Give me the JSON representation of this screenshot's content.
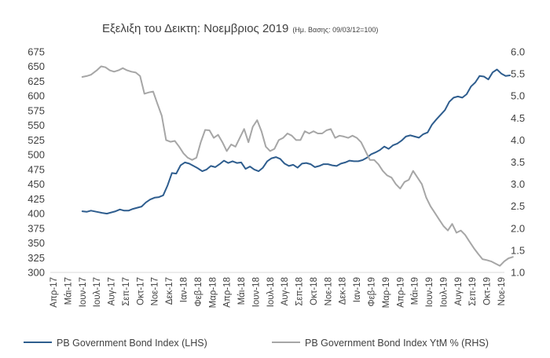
{
  "chart_data": {
    "type": "line",
    "title": "Εξελιξη του Δεικτη: Νοεμβριος 2019",
    "subtitle": "(Ημ. Βασης: 09/03/12=100)",
    "x_categories": [
      "Απρ-17",
      "Μάι-17",
      "Ιουν-17",
      "Ιουλ-17",
      "Αυγ-17",
      "Σεπ-17",
      "Οκτ-17",
      "Νοε-17",
      "Δεκ-17",
      "Ιαν-18",
      "Φεβ-18",
      "Μαρ-18",
      "Απρ-18",
      "Μάι-18",
      "Ιουν-18",
      "Ιουλ-18",
      "Αυγ-18",
      "Σεπ-18",
      "Οκτ-18",
      "Νοε-18",
      "Δεκ-18",
      "Ιαν-19",
      "Φεβ-19",
      "Μαρ-19",
      "Απρ-19",
      "Μάι-19",
      "Ιουν-19",
      "Ιουλ-19",
      "Αυγ-19",
      "Σεπ-19",
      "Οκτ-19",
      "Νοε-19"
    ],
    "y_left": {
      "min": 300,
      "max": 675,
      "ticks": [
        "300",
        "325",
        "350",
        "375",
        "400",
        "425",
        "450",
        "475",
        "500",
        "525",
        "550",
        "575",
        "600",
        "625",
        "650",
        "675"
      ]
    },
    "y_right": {
      "min": 1.0,
      "max": 6.0,
      "ticks": [
        "1.0",
        "1.5",
        "2.0",
        "2.5",
        "3.0",
        "3.5",
        "4.0",
        "4.5",
        "5.0",
        "5.5",
        "6.0"
      ]
    },
    "series": [
      {
        "name": "PB Government Bond Index (LHS)",
        "axis": "left",
        "color": "#2e5d8e",
        "points": [
          [
            2.0,
            404
          ],
          [
            2.3,
            403
          ],
          [
            2.6,
            405
          ],
          [
            3.0,
            403
          ],
          [
            3.4,
            401
          ],
          [
            3.7,
            400
          ],
          [
            4.0,
            402
          ],
          [
            4.3,
            404
          ],
          [
            4.6,
            407
          ],
          [
            4.9,
            405
          ],
          [
            5.2,
            405
          ],
          [
            5.5,
            408
          ],
          [
            5.8,
            410
          ],
          [
            6.1,
            412
          ],
          [
            6.4,
            419
          ],
          [
            6.7,
            424
          ],
          [
            7.0,
            427
          ],
          [
            7.3,
            428
          ],
          [
            7.6,
            431
          ],
          [
            7.9,
            448
          ],
          [
            8.2,
            469
          ],
          [
            8.5,
            468
          ],
          [
            8.8,
            482
          ],
          [
            9.1,
            487
          ],
          [
            9.4,
            485
          ],
          [
            9.7,
            481
          ],
          [
            10.0,
            477
          ],
          [
            10.3,
            472
          ],
          [
            10.6,
            475
          ],
          [
            10.9,
            481
          ],
          [
            11.2,
            479
          ],
          [
            11.5,
            484
          ],
          [
            11.8,
            490
          ],
          [
            12.1,
            486
          ],
          [
            12.4,
            489
          ],
          [
            12.7,
            486
          ],
          [
            13.0,
            487
          ],
          [
            13.3,
            476
          ],
          [
            13.6,
            480
          ],
          [
            13.9,
            475
          ],
          [
            14.2,
            472
          ],
          [
            14.5,
            478
          ],
          [
            14.8,
            489
          ],
          [
            15.1,
            494
          ],
          [
            15.4,
            496
          ],
          [
            15.7,
            493
          ],
          [
            16.0,
            485
          ],
          [
            16.3,
            481
          ],
          [
            16.6,
            483
          ],
          [
            16.9,
            478
          ],
          [
            17.2,
            485
          ],
          [
            17.5,
            486
          ],
          [
            17.8,
            484
          ],
          [
            18.1,
            479
          ],
          [
            18.4,
            481
          ],
          [
            18.7,
            484
          ],
          [
            19.0,
            484
          ],
          [
            19.3,
            482
          ],
          [
            19.6,
            481
          ],
          [
            19.9,
            485
          ],
          [
            20.2,
            487
          ],
          [
            20.5,
            490
          ],
          [
            20.8,
            489
          ],
          [
            21.1,
            489
          ],
          [
            21.4,
            491
          ],
          [
            21.7,
            495
          ],
          [
            22.0,
            501
          ],
          [
            22.3,
            504
          ],
          [
            22.6,
            508
          ],
          [
            22.9,
            514
          ],
          [
            23.2,
            510
          ],
          [
            23.5,
            516
          ],
          [
            23.8,
            519
          ],
          [
            24.1,
            524
          ],
          [
            24.4,
            531
          ],
          [
            24.7,
            533
          ],
          [
            25.0,
            531
          ],
          [
            25.3,
            529
          ],
          [
            25.6,
            535
          ],
          [
            25.9,
            538
          ],
          [
            26.2,
            551
          ],
          [
            26.5,
            560
          ],
          [
            26.8,
            568
          ],
          [
            27.1,
            576
          ],
          [
            27.4,
            590
          ],
          [
            27.7,
            597
          ],
          [
            28.0,
            599
          ],
          [
            28.3,
            597
          ],
          [
            28.6,
            603
          ],
          [
            28.9,
            616
          ],
          [
            29.2,
            623
          ],
          [
            29.5,
            634
          ],
          [
            29.8,
            633
          ],
          [
            30.1,
            628
          ],
          [
            30.4,
            640
          ],
          [
            30.7,
            645
          ],
          [
            31.0,
            638
          ],
          [
            31.3,
            634
          ],
          [
            31.6,
            635
          ]
        ]
      },
      {
        "name": "PB Government Bond Index YtM % (RHS)",
        "axis": "right",
        "color": "#a6a6a6",
        "points": [
          [
            2.0,
            5.43
          ],
          [
            2.3,
            5.45
          ],
          [
            2.6,
            5.48
          ],
          [
            3.0,
            5.58
          ],
          [
            3.3,
            5.67
          ],
          [
            3.6,
            5.65
          ],
          [
            3.9,
            5.58
          ],
          [
            4.2,
            5.55
          ],
          [
            4.5,
            5.58
          ],
          [
            4.8,
            5.63
          ],
          [
            5.1,
            5.58
          ],
          [
            5.4,
            5.55
          ],
          [
            5.7,
            5.53
          ],
          [
            6.0,
            5.45
          ],
          [
            6.3,
            5.05
          ],
          [
            6.6,
            5.08
          ],
          [
            6.9,
            5.1
          ],
          [
            7.2,
            4.82
          ],
          [
            7.5,
            4.55
          ],
          [
            7.8,
            4.0
          ],
          [
            8.1,
            3.96
          ],
          [
            8.4,
            3.98
          ],
          [
            8.7,
            3.85
          ],
          [
            9.0,
            3.7
          ],
          [
            9.3,
            3.6
          ],
          [
            9.6,
            3.55
          ],
          [
            9.9,
            3.6
          ],
          [
            10.2,
            3.95
          ],
          [
            10.5,
            4.23
          ],
          [
            10.8,
            4.22
          ],
          [
            11.1,
            4.05
          ],
          [
            11.4,
            4.12
          ],
          [
            11.7,
            3.95
          ],
          [
            12.0,
            3.75
          ],
          [
            12.3,
            3.9
          ],
          [
            12.6,
            3.85
          ],
          [
            12.9,
            4.05
          ],
          [
            13.2,
            4.25
          ],
          [
            13.5,
            3.95
          ],
          [
            13.8,
            4.3
          ],
          [
            14.1,
            4.45
          ],
          [
            14.4,
            4.2
          ],
          [
            14.7,
            3.85
          ],
          [
            15.0,
            3.75
          ],
          [
            15.3,
            3.8
          ],
          [
            15.6,
            4.0
          ],
          [
            15.9,
            4.05
          ],
          [
            16.2,
            4.15
          ],
          [
            16.5,
            4.1
          ],
          [
            16.8,
            4.0
          ],
          [
            17.1,
            4.0
          ],
          [
            17.4,
            4.2
          ],
          [
            17.7,
            4.15
          ],
          [
            18.0,
            4.2
          ],
          [
            18.3,
            4.15
          ],
          [
            18.6,
            4.15
          ],
          [
            18.9,
            4.22
          ],
          [
            19.2,
            4.25
          ],
          [
            19.5,
            4.05
          ],
          [
            19.8,
            4.1
          ],
          [
            20.1,
            4.08
          ],
          [
            20.4,
            4.05
          ],
          [
            20.7,
            4.1
          ],
          [
            21.0,
            4.05
          ],
          [
            21.3,
            3.95
          ],
          [
            21.6,
            3.75
          ],
          [
            21.9,
            3.55
          ],
          [
            22.2,
            3.55
          ],
          [
            22.5,
            3.45
          ],
          [
            22.8,
            3.3
          ],
          [
            23.1,
            3.2
          ],
          [
            23.4,
            3.15
          ],
          [
            23.7,
            3.0
          ],
          [
            24.0,
            2.9
          ],
          [
            24.3,
            3.05
          ],
          [
            24.6,
            3.1
          ],
          [
            24.9,
            3.3
          ],
          [
            25.2,
            3.15
          ],
          [
            25.5,
            3.0
          ],
          [
            25.8,
            2.7
          ],
          [
            26.1,
            2.5
          ],
          [
            26.4,
            2.35
          ],
          [
            26.7,
            2.2
          ],
          [
            27.0,
            2.05
          ],
          [
            27.3,
            1.95
          ],
          [
            27.6,
            2.1
          ],
          [
            27.9,
            1.9
          ],
          [
            28.2,
            1.95
          ],
          [
            28.5,
            1.85
          ],
          [
            28.8,
            1.7
          ],
          [
            29.1,
            1.55
          ],
          [
            29.4,
            1.42
          ],
          [
            29.7,
            1.3
          ],
          [
            30.0,
            1.28
          ],
          [
            30.3,
            1.25
          ],
          [
            30.6,
            1.2
          ],
          [
            30.9,
            1.15
          ],
          [
            31.2,
            1.25
          ],
          [
            31.5,
            1.32
          ],
          [
            31.8,
            1.35
          ]
        ]
      }
    ],
    "legend_position": "bottom",
    "grid": false
  }
}
